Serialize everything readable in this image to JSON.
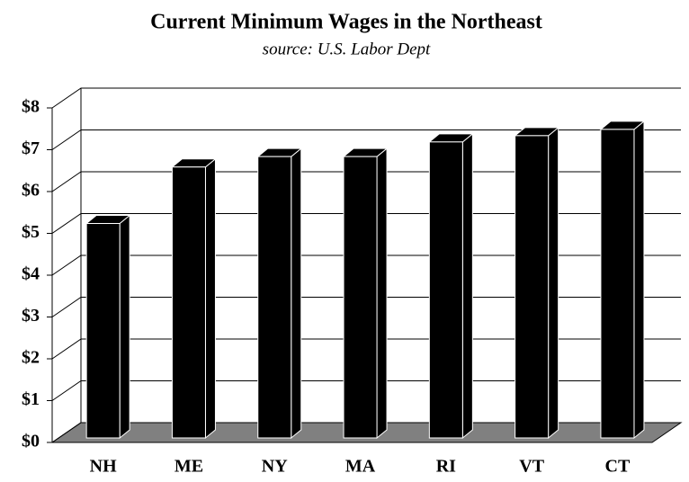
{
  "chart_data": {
    "type": "bar3d",
    "title": "Current Minimum Wages in the Northeast",
    "subtitle": "source: U.S. Labor Dept",
    "categories": [
      "NH",
      "ME",
      "NY",
      "MA",
      "RI",
      "VT",
      "CT"
    ],
    "values": [
      5.15,
      6.5,
      6.75,
      6.75,
      7.1,
      7.25,
      7.4
    ],
    "color": "#000000",
    "floor_color": "#808080",
    "ylim": [
      0,
      8
    ],
    "yticks": [
      {
        "value": 0,
        "label": "$0"
      },
      {
        "value": 1,
        "label": "$1"
      },
      {
        "value": 2,
        "label": "$2"
      },
      {
        "value": 3,
        "label": "$3"
      },
      {
        "value": 4,
        "label": "$4"
      },
      {
        "value": 5,
        "label": "$5"
      },
      {
        "value": 6,
        "label": "$6"
      },
      {
        "value": 7,
        "label": "$7"
      },
      {
        "value": 8,
        "label": "$8"
      }
    ],
    "grid": true
  }
}
